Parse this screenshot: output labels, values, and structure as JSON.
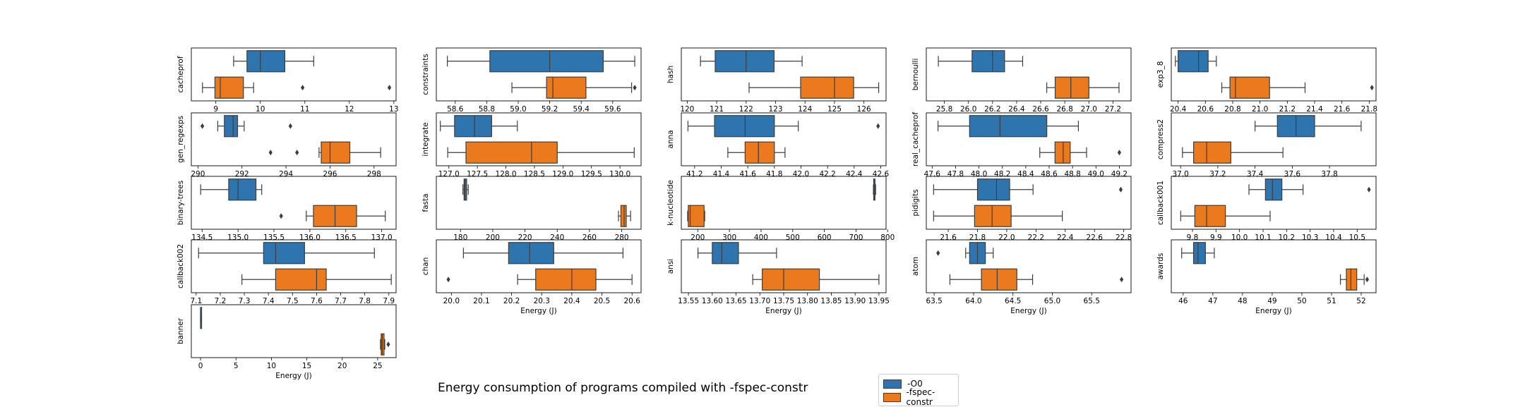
{
  "figure_title": "Energy consumption of programs compiled with -fspec-constr",
  "legend": [
    {
      "label": "-O0",
      "color": "#2e75b0"
    },
    {
      "label": "-fspec-constr",
      "color": "#eb7a1f"
    }
  ],
  "xlabel": "Energy (J)",
  "chart_data": [
    {
      "type": "box",
      "title": "cacheprof",
      "xlim": [
        8.45,
        13.05
      ],
      "ticks": [
        9,
        10,
        11,
        12,
        13
      ],
      "tick_labels": [
        "9",
        "10",
        "11",
        "12",
        "13"
      ],
      "xlabel": "",
      "series": [
        {
          "name": "-O0",
          "whislo": 9.4,
          "q1": 9.7,
          "med": 10.0,
          "q3": 10.55,
          "whishi": 11.2,
          "fliers": []
        },
        {
          "name": "-fspec-constr",
          "whislo": 8.7,
          "q1": 8.98,
          "med": 9.1,
          "q3": 9.62,
          "whishi": 9.85,
          "fliers": [
            10.95,
            12.9
          ]
        }
      ]
    },
    {
      "type": "box",
      "title": "constraints",
      "xlim": [
        58.48,
        59.78
      ],
      "ticks": [
        58.6,
        58.8,
        59.0,
        59.2,
        59.4,
        59.6
      ],
      "tick_labels": [
        "58.6",
        "58.8",
        "59.0",
        "59.2",
        "59.4",
        "59.6"
      ],
      "xlabel": "",
      "series": [
        {
          "name": "-O0",
          "whislo": 58.55,
          "q1": 58.82,
          "med": 59.2,
          "q3": 59.54,
          "whishi": 59.74,
          "fliers": []
        },
        {
          "name": "-fspec-constr",
          "whislo": 58.96,
          "q1": 59.18,
          "med": 59.22,
          "q3": 59.43,
          "whishi": 59.72,
          "fliers": [
            59.74
          ]
        }
      ]
    },
    {
      "type": "box",
      "title": "hash",
      "xlim": [
        119.8,
        126.75
      ],
      "ticks": [
        120,
        121,
        122,
        123,
        124,
        125,
        126
      ],
      "tick_labels": [
        "120",
        "121",
        "122",
        "123",
        "124",
        "125",
        "126"
      ],
      "xlabel": "",
      "series": [
        {
          "name": "-O0",
          "whislo": 120.45,
          "q1": 120.95,
          "med": 122.0,
          "q3": 122.95,
          "whishi": 123.9,
          "fliers": []
        },
        {
          "name": "-fspec-constr",
          "whislo": 122.1,
          "q1": 123.85,
          "med": 125.0,
          "q3": 125.65,
          "whishi": 126.5,
          "fliers": []
        }
      ]
    },
    {
      "type": "box",
      "title": "bernoulli",
      "xlim": [
        25.65,
        27.35
      ],
      "ticks": [
        25.8,
        26.0,
        26.2,
        26.4,
        26.6,
        26.8,
        27.0,
        27.2
      ],
      "tick_labels": [
        "25.8",
        "26.0",
        "26.2",
        "26.4",
        "26.6",
        "26.8",
        "27.0",
        "27.2"
      ],
      "xlabel": "",
      "series": [
        {
          "name": "-O0",
          "whislo": 25.75,
          "q1": 26.03,
          "med": 26.2,
          "q3": 26.3,
          "whishi": 26.45,
          "fliers": []
        },
        {
          "name": "-fspec-constr",
          "whislo": 26.65,
          "q1": 26.72,
          "med": 26.85,
          "q3": 27.0,
          "whishi": 27.25,
          "fliers": []
        }
      ]
    },
    {
      "type": "box",
      "title": "exp3_8",
      "xlim": [
        20.35,
        21.85
      ],
      "ticks": [
        20.4,
        20.6,
        20.8,
        21.0,
        21.2,
        21.4,
        21.6,
        21.8
      ],
      "tick_labels": [
        "20.4",
        "20.6",
        "20.8",
        "21.0",
        "21.2",
        "21.4",
        "21.6",
        "21.8"
      ],
      "xlabel": "",
      "series": [
        {
          "name": "-O0",
          "whislo": 20.38,
          "q1": 20.4,
          "med": 20.55,
          "q3": 20.62,
          "whishi": 20.68,
          "fliers": []
        },
        {
          "name": "-fspec-constr",
          "whislo": 20.72,
          "q1": 20.78,
          "med": 20.82,
          "q3": 21.07,
          "whishi": 21.33,
          "fliers": [
            21.82
          ]
        }
      ]
    },
    {
      "type": "box",
      "title": "gen_regexps",
      "xlim": [
        289.7,
        299.0
      ],
      "ticks": [
        290,
        292,
        294,
        296,
        298
      ],
      "tick_labels": [
        "290",
        "292",
        "294",
        "296",
        "298"
      ],
      "xlabel": "",
      "series": [
        {
          "name": "-O0",
          "whislo": 290.9,
          "q1": 291.2,
          "med": 291.6,
          "q3": 291.8,
          "whishi": 292.1,
          "fliers": [
            290.2,
            294.2
          ]
        },
        {
          "name": "-fspec-constr",
          "whislo": 295.5,
          "q1": 295.6,
          "med": 296.0,
          "q3": 296.9,
          "whishi": 298.3,
          "fliers": [
            293.3,
            294.5
          ]
        }
      ]
    },
    {
      "type": "box",
      "title": "integrate",
      "xlim": [
        126.78,
        130.37
      ],
      "ticks": [
        127.0,
        127.5,
        128.0,
        128.5,
        129.0,
        129.5,
        130.0
      ],
      "tick_labels": [
        "127.0",
        "127.5",
        "128.0",
        "128.5",
        "129.0",
        "129.5",
        "130.0"
      ],
      "xlabel": "",
      "series": [
        {
          "name": "-O0",
          "whislo": 126.85,
          "q1": 127.1,
          "med": 127.45,
          "q3": 127.75,
          "whishi": 128.2,
          "fliers": []
        },
        {
          "name": "-fspec-constr",
          "whislo": 126.98,
          "q1": 127.3,
          "med": 128.45,
          "q3": 128.9,
          "whishi": 130.25,
          "fliers": []
        }
      ]
    },
    {
      "type": "box",
      "title": "anna",
      "xlim": [
        41.1,
        42.64
      ],
      "ticks": [
        41.2,
        41.4,
        41.6,
        41.8,
        42.0,
        42.2,
        42.4,
        42.6
      ],
      "tick_labels": [
        "41.2",
        "41.4",
        "41.6",
        "41.8",
        "42.0",
        "42.2",
        "42.4",
        "42.6"
      ],
      "xlabel": "",
      "series": [
        {
          "name": "-O0",
          "whislo": 41.15,
          "q1": 41.35,
          "med": 41.58,
          "q3": 41.8,
          "whishi": 41.98,
          "fliers": [
            42.58
          ]
        },
        {
          "name": "-fspec-constr",
          "whislo": 41.45,
          "q1": 41.58,
          "med": 41.68,
          "q3": 41.8,
          "whishi": 41.88,
          "fliers": []
        }
      ]
    },
    {
      "type": "box",
      "title": "real_cacheprof",
      "xlim": [
        47.55,
        49.3
      ],
      "ticks": [
        47.6,
        47.8,
        48.0,
        48.2,
        48.4,
        48.6,
        48.8,
        49.0,
        49.2
      ],
      "tick_labels": [
        "47.6",
        "47.8",
        "48.0",
        "48.2",
        "48.4",
        "48.6",
        "48.8",
        "49.0",
        "49.2"
      ],
      "xlabel": "",
      "series": [
        {
          "name": "-O0",
          "whislo": 47.65,
          "q1": 47.92,
          "med": 48.18,
          "q3": 48.58,
          "whishi": 48.85,
          "fliers": []
        },
        {
          "name": "-fspec-constr",
          "whislo": 48.52,
          "q1": 48.65,
          "med": 48.72,
          "q3": 48.78,
          "whishi": 48.92,
          "fliers": [
            49.2
          ]
        }
      ]
    },
    {
      "type": "box",
      "title": "compress2",
      "xlim": [
        36.95,
        38.05
      ],
      "ticks": [
        37.0,
        37.2,
        37.4,
        37.6,
        37.8
      ],
      "tick_labels": [
        "37.0",
        "37.2",
        "37.4",
        "37.6",
        "37.8"
      ],
      "xlabel": "",
      "series": [
        {
          "name": "-O0",
          "whislo": 37.4,
          "q1": 37.52,
          "med": 37.62,
          "q3": 37.72,
          "whishi": 37.97,
          "fliers": []
        },
        {
          "name": "-fspec-constr",
          "whislo": 37.01,
          "q1": 37.07,
          "med": 37.14,
          "q3": 37.27,
          "whishi": 37.55,
          "fliers": []
        }
      ]
    },
    {
      "type": "box",
      "title": "binary-trees",
      "xlim": [
        134.35,
        137.2
      ],
      "ticks": [
        134.5,
        135.0,
        135.5,
        136.0,
        136.5,
        137.0
      ],
      "tick_labels": [
        "134.5",
        "135.0",
        "135.5",
        "136.0",
        "136.5",
        "137.0"
      ],
      "xlabel": "",
      "series": [
        {
          "name": "-O0",
          "whislo": 134.48,
          "q1": 134.87,
          "med": 135.0,
          "q3": 135.25,
          "whishi": 135.33,
          "fliers": []
        },
        {
          "name": "-fspec-constr",
          "whislo": 135.95,
          "q1": 136.05,
          "med": 136.35,
          "q3": 136.65,
          "whishi": 137.05,
          "fliers": [
            135.6
          ]
        }
      ]
    },
    {
      "type": "box",
      "title": "fasta",
      "xlim": [
        165,
        292
      ],
      "ticks": [
        180,
        200,
        220,
        240,
        260,
        280
      ],
      "tick_labels": [
        "180",
        "200",
        "220",
        "240",
        "260",
        "280"
      ],
      "xlabel": "",
      "series": [
        {
          "name": "-O0",
          "whislo": 181.5,
          "q1": 182.2,
          "med": 182.8,
          "q3": 183.8,
          "whishi": 184.8,
          "fliers": []
        },
        {
          "name": "-fspec-constr",
          "whislo": 278.0,
          "q1": 279.5,
          "med": 281.5,
          "q3": 282.8,
          "whishi": 285.5,
          "fliers": []
        }
      ]
    },
    {
      "type": "box",
      "title": "k-nucleotide",
      "xlim": [
        148,
        795
      ],
      "ticks": [
        200,
        300,
        400,
        500,
        600,
        700,
        800
      ],
      "tick_labels": [
        "200",
        "300",
        "400",
        "500",
        "600",
        "700",
        "800"
      ],
      "xlabel": "",
      "series": [
        {
          "name": "-O0",
          "whislo": 755,
          "q1": 756,
          "med": 757,
          "q3": 760,
          "whishi": 762,
          "fliers": []
        },
        {
          "name": "-fspec-constr",
          "whislo": 168,
          "q1": 170,
          "med": 176,
          "q3": 220,
          "whishi": 222,
          "fliers": []
        }
      ]
    },
    {
      "type": "box",
      "title": "pidigits",
      "xlim": [
        21.45,
        22.85
      ],
      "ticks": [
        21.6,
        21.8,
        22.0,
        22.2,
        22.4,
        22.6,
        22.8
      ],
      "tick_labels": [
        "21.6",
        "21.8",
        "22.0",
        "22.2",
        "22.4",
        "22.6",
        "22.8"
      ],
      "xlabel": "",
      "series": [
        {
          "name": "-O0",
          "whislo": 21.5,
          "q1": 21.8,
          "med": 21.93,
          "q3": 22.02,
          "whishi": 22.18,
          "fliers": [
            22.78
          ]
        },
        {
          "name": "-fspec-constr",
          "whislo": 21.5,
          "q1": 21.78,
          "med": 21.9,
          "q3": 22.03,
          "whishi": 22.38,
          "fliers": []
        }
      ]
    },
    {
      "type": "box",
      "title": "callback001",
      "xlim": [
        9.71,
        10.58
      ],
      "ticks": [
        9.8,
        9.9,
        10.0,
        10.1,
        10.2,
        10.3,
        10.4,
        10.5
      ],
      "tick_labels": [
        "9.8",
        "9.9",
        "10.0",
        "10.1",
        "10.2",
        "10.3",
        "10.4",
        "10.5"
      ],
      "xlabel": "",
      "series": [
        {
          "name": "-O0",
          "whislo": 10.04,
          "q1": 10.11,
          "med": 10.14,
          "q3": 10.18,
          "whishi": 10.27,
          "fliers": [
            10.55
          ]
        },
        {
          "name": "-fspec-constr",
          "whislo": 9.75,
          "q1": 9.81,
          "med": 9.86,
          "q3": 9.94,
          "whishi": 10.13,
          "fliers": []
        }
      ]
    },
    {
      "type": "box",
      "title": "callback002",
      "xlim": [
        7.08,
        7.93
      ],
      "ticks": [
        7.1,
        7.2,
        7.3,
        7.4,
        7.5,
        7.6,
        7.7,
        7.8,
        7.9
      ],
      "tick_labels": [
        "7.1",
        "7.2",
        "7.3",
        "7.4",
        "7.5",
        "7.6",
        "7.7",
        "7.8",
        "7.9"
      ],
      "xlabel": "",
      "series": [
        {
          "name": "-O0",
          "whislo": 7.11,
          "q1": 7.38,
          "med": 7.43,
          "q3": 7.55,
          "whishi": 7.84,
          "fliers": []
        },
        {
          "name": "-fspec-constr",
          "whislo": 7.29,
          "q1": 7.43,
          "med": 7.6,
          "q3": 7.64,
          "whishi": 7.91,
          "fliers": []
        }
      ]
    },
    {
      "type": "box",
      "title": "chan",
      "xlim": [
        19.95,
        20.63
      ],
      "ticks": [
        20.0,
        20.1,
        20.2,
        20.3,
        20.4,
        20.5,
        20.6
      ],
      "tick_labels": [
        "20.0",
        "20.1",
        "20.2",
        "20.3",
        "20.4",
        "20.5",
        "20.6"
      ],
      "xlabel": "Energy (J)",
      "series": [
        {
          "name": "-O0",
          "whislo": 20.04,
          "q1": 20.19,
          "med": 20.26,
          "q3": 20.34,
          "whishi": 20.57,
          "fliers": []
        },
        {
          "name": "-fspec-constr",
          "whislo": 20.22,
          "q1": 20.28,
          "med": 20.4,
          "q3": 20.48,
          "whishi": 20.6,
          "fliers": [
            19.99
          ]
        }
      ]
    },
    {
      "type": "box",
      "title": "ansi",
      "xlim": [
        13.535,
        13.965
      ],
      "ticks": [
        13.55,
        13.6,
        13.65,
        13.7,
        13.75,
        13.8,
        13.85,
        13.9,
        13.95
      ],
      "tick_labels": [
        "13.55",
        "13.60",
        "13.65",
        "13.70",
        "13.75",
        "13.80",
        "13.85",
        "13.90",
        "13.95"
      ],
      "xlabel": "Energy (J)",
      "series": [
        {
          "name": "-O0",
          "whislo": 13.57,
          "q1": 13.6,
          "med": 13.62,
          "q3": 13.655,
          "whishi": 13.735,
          "fliers": []
        },
        {
          "name": "-fspec-constr",
          "whislo": 13.685,
          "q1": 13.705,
          "med": 13.75,
          "q3": 13.825,
          "whishi": 13.95,
          "fliers": []
        }
      ]
    },
    {
      "type": "box",
      "title": "atom",
      "xlim": [
        63.4,
        66.0
      ],
      "ticks": [
        63.5,
        64.0,
        64.5,
        65.0,
        65.5
      ],
      "tick_labels": [
        "63.5",
        "64.0",
        "64.5",
        "65.0",
        "65.5"
      ],
      "xlabel": "Energy (J)",
      "series": [
        {
          "name": "-O0",
          "whislo": 63.9,
          "q1": 63.95,
          "med": 64.05,
          "q3": 64.15,
          "whishi": 64.25,
          "fliers": [
            63.55
          ]
        },
        {
          "name": "-fspec-constr",
          "whislo": 63.7,
          "q1": 64.1,
          "med": 64.3,
          "q3": 64.55,
          "whishi": 64.75,
          "fliers": [
            65.88
          ]
        }
      ]
    },
    {
      "type": "box",
      "title": "awards",
      "xlim": [
        45.6,
        52.5
      ],
      "ticks": [
        46,
        47,
        48,
        49,
        50,
        51,
        52
      ],
      "tick_labels": [
        "46",
        "47",
        "48",
        "49",
        "50",
        "51",
        "52"
      ],
      "xlabel": "Energy (J)",
      "series": [
        {
          "name": "-O0",
          "whislo": 45.95,
          "q1": 46.35,
          "med": 46.5,
          "q3": 46.75,
          "whishi": 47.05,
          "fliers": []
        },
        {
          "name": "-fspec-constr",
          "whislo": 51.3,
          "q1": 51.5,
          "med": 51.65,
          "q3": 51.85,
          "whishi": 52.1,
          "fliers": [
            52.2
          ]
        }
      ]
    },
    {
      "type": "box",
      "title": "banner",
      "xlim": [
        -1.3,
        27.6
      ],
      "ticks": [
        0,
        5,
        10,
        15,
        20,
        25
      ],
      "tick_labels": [
        "0",
        "5",
        "10",
        "15",
        "20",
        "25"
      ],
      "xlabel": "Energy (J)",
      "series": [
        {
          "name": "-O0",
          "whislo": 0.0,
          "q1": 0.0,
          "med": 0.0,
          "q3": 0.0,
          "whishi": 0.0,
          "fliers": []
        },
        {
          "name": "-fspec-constr",
          "whislo": 25.4,
          "q1": 25.5,
          "med": 25.65,
          "q3": 25.9,
          "whishi": 26.0,
          "fliers": [
            26.5
          ]
        }
      ]
    }
  ]
}
